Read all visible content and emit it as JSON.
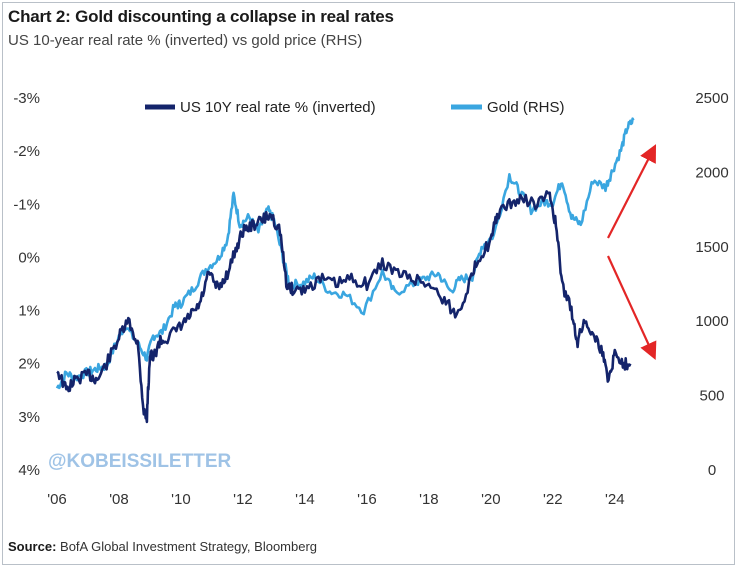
{
  "title": "Chart 2: Gold discounting a collapse in real rates",
  "subtitle": "US 10-year real rate % (inverted) vs gold price (RHS)",
  "source_label": "Source:",
  "source_text": " BofA Global Investment Strategy, Bloomberg",
  "watermark": "@KOBEISSILETTER",
  "colors": {
    "real_rate": "#14246b",
    "gold": "#3aa6e0",
    "arrow": "#e32626"
  },
  "chart_data": {
    "type": "line",
    "xlabel": "",
    "ylabel": "",
    "x_ticks": [
      "'06",
      "'08",
      "'10",
      "'12",
      "'14",
      "'16",
      "'18",
      "'20",
      "'22",
      "'24"
    ],
    "x_tick_values": [
      2006,
      2008,
      2010,
      2012,
      2014,
      2016,
      2018,
      2020,
      2022,
      2024
    ],
    "xlim": [
      2006,
      2025.2
    ],
    "y_left": {
      "ticks": [
        "-3%",
        "-2%",
        "-1%",
        "0%",
        "1%",
        "2%",
        "3%",
        "4%"
      ],
      "tick_values": [
        -3,
        -2,
        -1,
        0,
        1,
        2,
        3,
        4
      ],
      "range": [
        -3,
        4
      ],
      "inverted": true
    },
    "y_right": {
      "ticks": [
        "2500",
        "2000",
        "1500",
        "1000",
        "500",
        "0"
      ],
      "tick_values": [
        2500,
        2000,
        1500,
        1000,
        500,
        0
      ],
      "range": [
        0,
        2500
      ]
    },
    "legend_placement": "top-center",
    "grid": false,
    "series": [
      {
        "name": "US 10Y real rate % (inverted)",
        "axis": "left",
        "x": [
          2006.0,
          2006.3,
          2006.6,
          2007.0,
          2007.3,
          2007.6,
          2008.0,
          2008.3,
          2008.6,
          2008.8,
          2008.9,
          2009.0,
          2009.1,
          2009.3,
          2009.6,
          2010.0,
          2010.3,
          2010.6,
          2010.9,
          2011.2,
          2011.5,
          2011.8,
          2012.0,
          2012.3,
          2012.6,
          2012.9,
          2013.2,
          2013.4,
          2013.6,
          2014.0,
          2014.5,
          2015.0,
          2015.5,
          2016.0,
          2016.5,
          2017.0,
          2017.5,
          2018.0,
          2018.5,
          2018.9,
          2019.3,
          2019.6,
          2020.0,
          2020.2,
          2020.6,
          2021.0,
          2021.5,
          2021.9,
          2022.1,
          2022.3,
          2022.6,
          2022.8,
          2023.0,
          2023.3,
          2023.6,
          2023.8,
          2024.0,
          2024.3,
          2024.5
        ],
        "values": [
          2.1,
          2.5,
          2.3,
          2.2,
          2.3,
          2.0,
          1.5,
          1.2,
          1.6,
          2.9,
          3.0,
          1.8,
          1.9,
          1.6,
          1.5,
          1.3,
          1.1,
          0.9,
          0.3,
          0.6,
          0.3,
          -0.2,
          -0.5,
          -0.6,
          -0.7,
          -0.8,
          -0.5,
          0.5,
          0.6,
          0.6,
          0.4,
          0.5,
          0.4,
          0.5,
          0.1,
          0.3,
          0.4,
          0.5,
          0.8,
          1.1,
          0.5,
          0.0,
          -0.3,
          -0.8,
          -1.0,
          -1.1,
          -1.0,
          -1.2,
          -0.6,
          0.5,
          1.0,
          1.6,
          1.2,
          1.4,
          1.8,
          2.3,
          1.8,
          2.0,
          2.0
        ]
      },
      {
        "name": "Gold (RHS)",
        "axis": "right",
        "x": [
          2006.0,
          2006.3,
          2006.6,
          2007.0,
          2007.3,
          2007.6,
          2008.0,
          2008.2,
          2008.6,
          2008.9,
          2009.1,
          2009.4,
          2009.8,
          2010.0,
          2010.4,
          2010.8,
          2011.2,
          2011.5,
          2011.7,
          2011.9,
          2012.2,
          2012.5,
          2012.8,
          2013.0,
          2013.3,
          2013.5,
          2013.9,
          2014.3,
          2014.8,
          2015.3,
          2015.9,
          2016.5,
          2016.9,
          2017.5,
          2017.9,
          2018.3,
          2018.7,
          2019.0,
          2019.4,
          2019.7,
          2020.1,
          2020.6,
          2020.9,
          2021.3,
          2021.7,
          2022.0,
          2022.3,
          2022.6,
          2022.9,
          2023.3,
          2023.7,
          2023.9,
          2024.2,
          2024.4,
          2024.6
        ],
        "values": [
          550,
          650,
          620,
          660,
          680,
          700,
          900,
          970,
          850,
          750,
          900,
          930,
          1100,
          1120,
          1220,
          1350,
          1420,
          1550,
          1850,
          1650,
          1700,
          1600,
          1750,
          1680,
          1420,
          1250,
          1250,
          1300,
          1200,
          1180,
          1070,
          1330,
          1190,
          1250,
          1290,
          1320,
          1200,
          1280,
          1300,
          1500,
          1580,
          1980,
          1880,
          1750,
          1800,
          1800,
          1950,
          1700,
          1650,
          1950,
          1900,
          2000,
          2150,
          2300,
          2350
        ]
      }
    ]
  }
}
